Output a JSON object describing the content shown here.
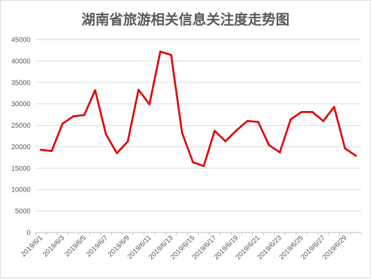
{
  "chart_data": {
    "type": "line",
    "title": "湖南省旅游相关信息关注度走势图",
    "xlabel": "",
    "ylabel": "",
    "ylim": [
      0,
      45000
    ],
    "y_ticks": [
      0,
      5000,
      10000,
      15000,
      20000,
      25000,
      30000,
      35000,
      40000,
      45000
    ],
    "grid": true,
    "legend": "none",
    "x": [
      "2019/6/1",
      "2019/6/2",
      "2019/6/3",
      "2019/6/4",
      "2019/6/5",
      "2019/6/6",
      "2019/6/7",
      "2019/6/8",
      "2019/6/9",
      "2019/6/10",
      "2019/6/11",
      "2019/6/12",
      "2019/6/13",
      "2019/6/14",
      "2019/6/15",
      "2019/6/16",
      "2019/6/17",
      "2019/6/18",
      "2019/6/19",
      "2019/6/20",
      "2019/6/21",
      "2019/6/22",
      "2019/6/23",
      "2019/6/24",
      "2019/6/25",
      "2019/6/26",
      "2019/6/27",
      "2019/6/28",
      "2019/6/29",
      "2019/6/30"
    ],
    "x_tick_labels": [
      "2019/6/1",
      "2019/6/3",
      "2019/6/5",
      "2019/6/7",
      "2019/6/9",
      "2019/6/11",
      "2019/6/13",
      "2019/6/15",
      "2019/6/17",
      "2019/6/19",
      "2019/6/21",
      "2019/6/23",
      "2019/6/25",
      "2019/6/27",
      "2019/6/29"
    ],
    "series": [
      {
        "values": [
          19300,
          19000,
          25400,
          27100,
          27400,
          33200,
          22900,
          18500,
          21200,
          33300,
          29900,
          42200,
          41400,
          23300,
          16400,
          15500,
          23700,
          21300,
          23800,
          26000,
          25800,
          20400,
          18700,
          26400,
          28100,
          28100,
          26000,
          29300,
          19600,
          17900
        ],
        "color": "#e00000"
      }
    ]
  }
}
